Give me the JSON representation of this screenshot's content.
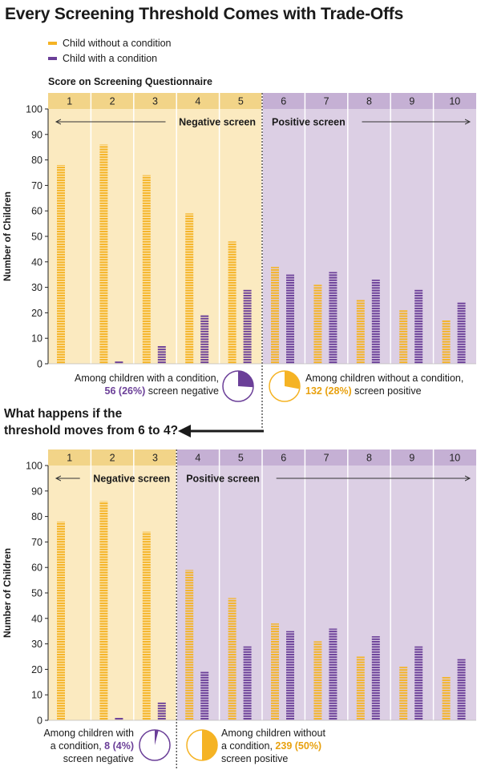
{
  "title": "Every Screening Threshold Comes with Trade-Offs",
  "question": [
    "What happens if the",
    "threshold moves from 6 to 4?"
  ],
  "colors": {
    "without_condition": "#f5b324",
    "with_condition": "#6b3f98",
    "negative_zone": "#fbeac0",
    "positive_zone": "#dccfe4",
    "text_negative_pct": "#6b3f98",
    "text_positive_pct": "#e8a10f"
  },
  "chart_data": [
    {
      "type": "bar",
      "title": "Score on Screening Questionnaire",
      "xlabel": "Score on Screening Questionnaire",
      "ylabel": "Number of Children",
      "ylim": [
        0,
        100
      ],
      "yticks": [
        0,
        10,
        20,
        30,
        40,
        50,
        60,
        70,
        80,
        90,
        100
      ],
      "categories": [
        "1",
        "2",
        "3",
        "4",
        "5",
        "6",
        "7",
        "8",
        "9",
        "10"
      ],
      "series": [
        {
          "name": "Child without a condition",
          "values": [
            78,
            86,
            74,
            59,
            48,
            38,
            31,
            25,
            21,
            17
          ]
        },
        {
          "name": "Child with a condition",
          "values": [
            0,
            1,
            7,
            19,
            29,
            35,
            36,
            33,
            29,
            24
          ]
        }
      ],
      "threshold": 6,
      "negative_label": "Negative screen",
      "positive_label": "Positive screen",
      "annotations": [
        {
          "pre": "Among children with a condition,",
          "highlight": "56 (26%)",
          "post": "screen negative",
          "fraction": 0.26
        },
        {
          "pre": "Among children without a condition,",
          "highlight": "132 (28%)",
          "post": "screen positive",
          "fraction": 0.28
        }
      ],
      "legend": "top-left"
    },
    {
      "type": "bar",
      "xlabel": "",
      "ylabel": "Number of Children",
      "ylim": [
        0,
        100
      ],
      "yticks": [
        0,
        10,
        20,
        30,
        40,
        50,
        60,
        70,
        80,
        90,
        100
      ],
      "categories": [
        "1",
        "2",
        "3",
        "4",
        "5",
        "6",
        "7",
        "8",
        "9",
        "10"
      ],
      "series": [
        {
          "name": "Child without a condition",
          "values": [
            78,
            86,
            74,
            59,
            48,
            38,
            31,
            25,
            21,
            17
          ]
        },
        {
          "name": "Child with a condition",
          "values": [
            0,
            1,
            7,
            19,
            29,
            35,
            36,
            33,
            29,
            24
          ]
        }
      ],
      "threshold": 4,
      "negative_label": "Negative screen",
      "positive_label": "Positive screen",
      "annotations": [
        {
          "pre": [
            "Among children with",
            "a condition,"
          ],
          "highlight": "8 (4%)",
          "post": "screen negative",
          "fraction": 0.04
        },
        {
          "pre": [
            "Among children without",
            "a condition,"
          ],
          "highlight": "239 (50%)",
          "post": "screen positive",
          "fraction": 0.5
        }
      ]
    }
  ]
}
